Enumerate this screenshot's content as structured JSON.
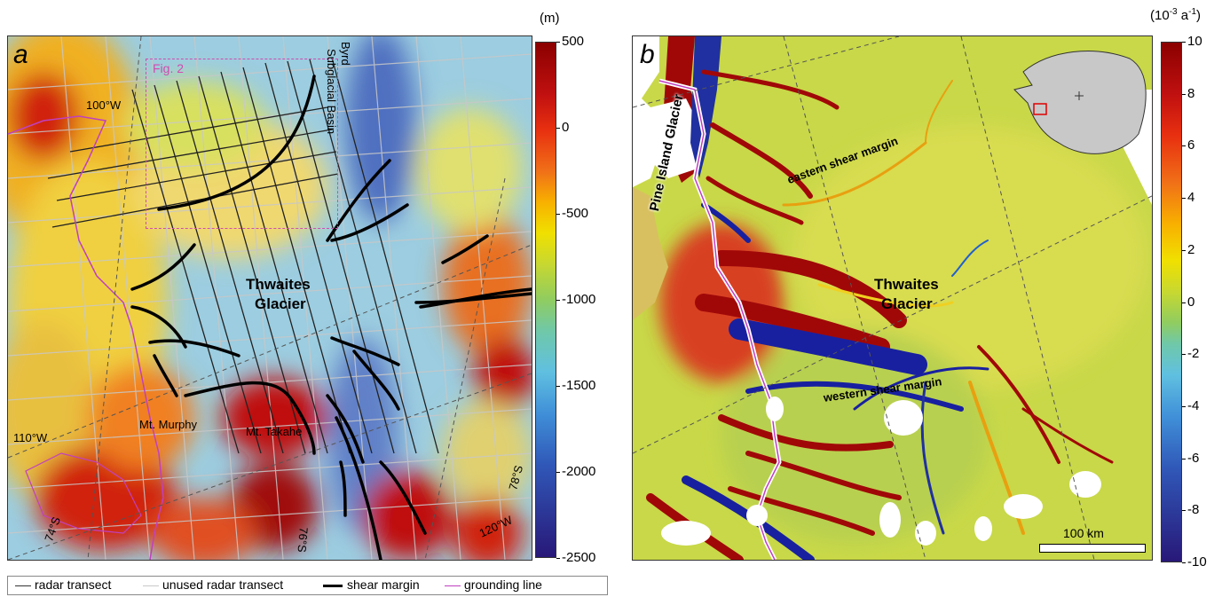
{
  "panel_a": {
    "label": "a",
    "fig_ref": "Fig. 2",
    "labels": {
      "byrd_1": "Byrd",
      "byrd_2": "Subglacial Basin",
      "thwaites_1": "Thwaites",
      "thwaites_2": "Glacier",
      "mt_murphy": "Mt. Murphy",
      "mt_takahe": "Mt. Takahe",
      "lon_100": "100°W",
      "lon_110": "110°W",
      "lon_120": "120°W",
      "lat_74": "74°S",
      "lat_76": "76°S",
      "lat_78": "78°S"
    },
    "colorbar": {
      "unit": "(m)",
      "min": -2500,
      "max": 500,
      "ticks": [
        "500",
        "0",
        "-500",
        "-1000",
        "-1500",
        "-2000",
        "-2500"
      ],
      "tick_values": [
        500,
        0,
        -500,
        -1000,
        -1500,
        -2000,
        -2500
      ]
    }
  },
  "panel_b": {
    "label": "b",
    "labels": {
      "pine_island": "Pine Island Glacier",
      "eastern": "eastern shear margin",
      "western": "western shear margin",
      "thwaites_1": "Thwaites",
      "thwaites_2": "Glacier",
      "scale": "100 km"
    },
    "colorbar": {
      "unit_prefix": "(10",
      "unit_exp1": "-3",
      "unit_mid": " a",
      "unit_exp2": "-1",
      "unit_suffix": ")",
      "min": -10,
      "max": 10,
      "ticks": [
        "10",
        "8",
        "6",
        "4",
        "2",
        "0",
        "-2",
        "-4",
        "-6",
        "-8",
        "-10"
      ],
      "tick_values": [
        10,
        8,
        6,
        4,
        2,
        0,
        -2,
        -4,
        -6,
        -8,
        -10
      ]
    }
  },
  "legend": {
    "radar_transect": "radar transect",
    "unused_radar_transect": "unused radar transect",
    "shear_margin": "shear margin",
    "grounding_line": "grounding line"
  },
  "colors": {
    "radar": "#333333",
    "unused_radar": "#c8c8c8",
    "shear": "#000000",
    "grounding": "#c040c0",
    "fig_box": "#d04cb0",
    "inset_box": "#e00000"
  }
}
